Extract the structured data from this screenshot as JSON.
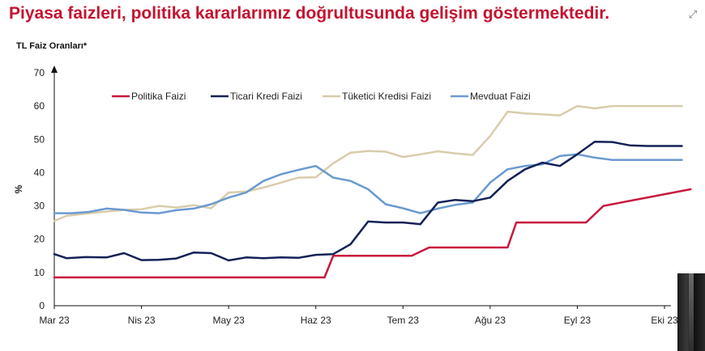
{
  "header": {
    "title": "Piyasa faizleri, politika kararlarımız doğrultusunda gelişim göstermektedir.",
    "expand_icon": "expand-arrows-icon"
  },
  "chart_data": {
    "type": "line",
    "subtitle": "TL Faiz Oranları*",
    "ylabel": "%",
    "ylim": [
      0,
      70
    ],
    "yticks": [
      0,
      10,
      20,
      30,
      40,
      50,
      60,
      70
    ],
    "xlim": [
      0,
      36
    ],
    "xticks": [
      {
        "label": "Mar 23",
        "pos": 0
      },
      {
        "label": "Nis 23",
        "pos": 5
      },
      {
        "label": "May 23",
        "pos": 10
      },
      {
        "label": "Haz 23",
        "pos": 15
      },
      {
        "label": "Tem 23",
        "pos": 20
      },
      {
        "label": "Ağu 23",
        "pos": 25
      },
      {
        "label": "Eyl 23",
        "pos": 30
      },
      {
        "label": "Eki 23",
        "pos": 35
      }
    ],
    "grid": false,
    "legend_position": "top",
    "series": [
      {
        "name": "Politika Faizi",
        "color": "#c8173d",
        "x": [
          0,
          15.5,
          16,
          20.5,
          21.5,
          26,
          26.5,
          30.5,
          31.5,
          36.5
        ],
        "y": [
          8.5,
          8.5,
          15,
          15,
          17.5,
          17.5,
          25,
          25,
          30,
          35
        ]
      },
      {
        "name": "Ticari Kredi Faizi",
        "color": "#132157",
        "x": [
          0,
          0.7,
          1.8,
          3,
          4,
          5,
          6,
          7,
          8,
          9,
          10,
          11,
          12,
          13,
          14,
          15,
          16,
          17,
          18,
          19,
          20,
          21,
          22,
          23,
          24,
          25,
          26,
          27,
          28,
          29,
          30,
          31,
          32,
          33,
          34,
          35,
          36
        ],
        "y": [
          15.5,
          14.3,
          14.6,
          14.5,
          15.8,
          13.7,
          13.8,
          14.2,
          16.0,
          15.8,
          13.6,
          14.5,
          14.3,
          14.5,
          14.4,
          15.3,
          15.5,
          18.5,
          25.3,
          25.0,
          25.0,
          24.5,
          31.0,
          31.8,
          31.4,
          32.5,
          37.5,
          41.0,
          43.0,
          42.0,
          45.5,
          49.3,
          49.2,
          48.2,
          48.0,
          48.0,
          48.0
        ]
      },
      {
        "name": "Tüketici Kredisi Faizi",
        "color": "#d9ccaa",
        "x": [
          0,
          0.7,
          2,
          3,
          4,
          5,
          6,
          7,
          8,
          9,
          10,
          11,
          12,
          13,
          14,
          15,
          16,
          17,
          18,
          19,
          20,
          21,
          22,
          23,
          24,
          25,
          26,
          27,
          28,
          29,
          30,
          31,
          32,
          33,
          34,
          35,
          36
        ],
        "y": [
          25.5,
          27.0,
          27.8,
          28.3,
          28.8,
          29.0,
          30.0,
          29.5,
          30.2,
          29.3,
          34.0,
          34.3,
          35.5,
          37.0,
          38.5,
          38.6,
          42.8,
          46.0,
          46.5,
          46.3,
          44.7,
          45.5,
          46.4,
          45.8,
          45.3,
          51.0,
          58.3,
          57.8,
          57.5,
          57.2,
          60.0,
          59.3,
          60.0,
          60.0,
          60.0,
          60.0,
          60.0
        ]
      },
      {
        "name": "Mevduat Faizi",
        "color": "#6a9acf",
        "x": [
          0,
          1,
          2,
          3,
          4,
          5,
          6,
          7,
          8,
          9,
          10,
          11,
          12,
          13,
          14,
          15,
          16,
          17,
          18,
          19,
          20,
          21,
          22,
          23,
          24,
          25,
          26,
          27,
          28,
          29,
          30,
          31,
          32,
          33,
          34,
          35,
          36
        ],
        "y": [
          27.8,
          27.8,
          28.2,
          29.2,
          28.8,
          28.0,
          27.8,
          28.7,
          29.2,
          30.5,
          32.5,
          34.0,
          37.5,
          39.5,
          40.8,
          42.0,
          38.5,
          37.5,
          35.0,
          30.5,
          29.3,
          27.8,
          29.2,
          30.3,
          31.0,
          37.0,
          41.0,
          42.0,
          42.5,
          45.0,
          45.5,
          44.5,
          43.8,
          43.8,
          43.8,
          43.8,
          43.8
        ]
      }
    ]
  }
}
